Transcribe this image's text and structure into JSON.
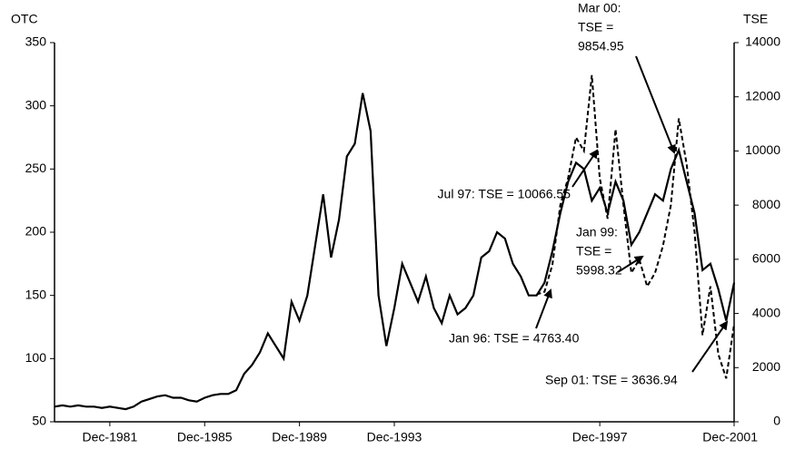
{
  "chart_data": {
    "type": "line",
    "categories": [
      null,
      null,
      null,
      null,
      null,
      null,
      null,
      "Dec-1981",
      null,
      null,
      null,
      null,
      null,
      null,
      null,
      null,
      null,
      null,
      null,
      "Dec-1985",
      null,
      null,
      null,
      null,
      null,
      null,
      null,
      null,
      null,
      null,
      null,
      "Dec-1989",
      null,
      null,
      null,
      null,
      null,
      null,
      null,
      null,
      null,
      null,
      null,
      "Dec-1993",
      null,
      null,
      null,
      null,
      null,
      null,
      null,
      null,
      null,
      null,
      null,
      null,
      null,
      null,
      null,
      null,
      null,
      null,
      null,
      null,
      null,
      null,
      null,
      null,
      null,
      "Dec-1997",
      null,
      null,
      null,
      null,
      null,
      null,
      null,
      null,
      null,
      null,
      null,
      null,
      null,
      null,
      null,
      null,
      "Dec-2001"
    ],
    "series": [
      {
        "name": "OTC",
        "color": "#000000",
        "dashed": false,
        "axis": "y",
        "values": [
          62,
          63,
          62,
          63,
          62,
          62,
          61,
          62,
          61,
          60,
          62,
          66,
          68,
          70,
          71,
          69,
          69,
          67,
          66,
          69,
          71,
          72,
          72,
          75,
          88,
          95,
          105,
          120,
          110,
          100,
          145,
          130,
          150,
          190,
          230,
          180,
          210,
          260,
          270,
          310,
          280,
          150,
          110,
          140,
          175,
          160,
          145,
          165,
          140,
          128,
          150,
          135,
          140,
          150,
          180,
          185,
          200,
          195,
          175,
          165,
          150,
          150,
          160,
          185,
          215,
          240,
          255,
          250,
          225,
          235,
          215,
          240,
          225,
          190,
          200,
          215,
          230,
          225,
          250,
          265,
          240,
          215,
          170,
          175,
          155,
          130,
          160
        ]
      },
      {
        "name": "TSE",
        "color": "#000000",
        "dashed": true,
        "axis": "y2",
        "values": [
          null,
          null,
          null,
          null,
          null,
          null,
          null,
          null,
          null,
          null,
          null,
          null,
          null,
          null,
          null,
          null,
          null,
          null,
          null,
          null,
          null,
          null,
          null,
          null,
          null,
          null,
          null,
          null,
          null,
          null,
          null,
          null,
          null,
          null,
          null,
          null,
          null,
          null,
          null,
          null,
          null,
          null,
          null,
          null,
          null,
          null,
          null,
          null,
          null,
          null,
          null,
          null,
          null,
          null,
          null,
          null,
          null,
          null,
          null,
          null,
          null,
          4700,
          4800,
          5800,
          8000,
          9000,
          10500,
          10000,
          12800,
          9000,
          7500,
          10800,
          8000,
          5500,
          6000,
          5000,
          5500,
          6500,
          8000,
          11200,
          9500,
          7000,
          3200,
          5000,
          2500,
          1600,
          3600
        ]
      }
    ],
    "ylim": [
      50,
      350
    ],
    "yticks": [
      50,
      100,
      150,
      200,
      250,
      300,
      350
    ],
    "y2lim": [
      0,
      14000
    ],
    "y2ticks": [
      0,
      2000,
      4000,
      6000,
      8000,
      10000,
      12000,
      14000
    ],
    "annotations": [
      [
        "Mar 00:",
        "TSE =",
        "9854.95"
      ],
      [
        "Jul 97: TSE = 10066.55"
      ],
      [
        "Jan 99:",
        "TSE =",
        "5998.32"
      ],
      [
        "Jan 96: TSE = 4763.40"
      ],
      [
        "Sep 01: TSE = 3636.94"
      ]
    ]
  }
}
